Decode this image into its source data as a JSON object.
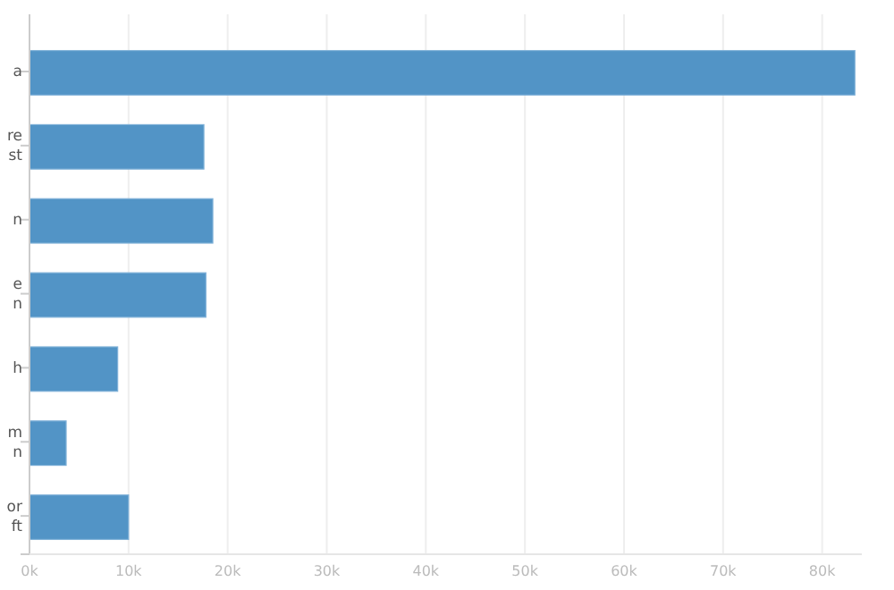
{
  "chart_data": {
    "type": "bar",
    "orientation": "horizontal",
    "categories": [
      "a",
      "re\nst",
      "n",
      "e\nn",
      "h",
      "m\nn",
      "or\nft"
    ],
    "values": [
      83300,
      17600,
      18500,
      17800,
      8900,
      3700,
      10000
    ],
    "color": "#5294c6",
    "xlim": [
      0,
      84000
    ],
    "xticks": [
      {
        "value": 0,
        "label": "0k"
      },
      {
        "value": 10000,
        "label": "10k"
      },
      {
        "value": 20000,
        "label": "20k"
      },
      {
        "value": 30000,
        "label": "30k"
      },
      {
        "value": 40000,
        "label": "40k"
      },
      {
        "value": 50000,
        "label": "50k"
      },
      {
        "value": 60000,
        "label": "60k"
      },
      {
        "value": 70000,
        "label": "70k"
      },
      {
        "value": 80000,
        "label": "80k"
      }
    ],
    "grid": "x"
  }
}
